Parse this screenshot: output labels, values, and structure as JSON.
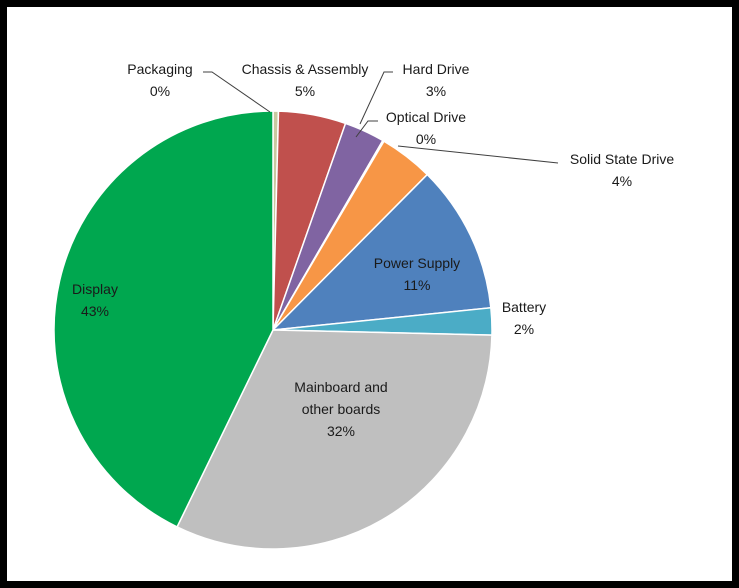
{
  "chart_data": {
    "type": "pie",
    "title": "",
    "start_angle_deg": 0,
    "direction": "clockwise",
    "slices": [
      {
        "name": "Packaging",
        "value": 0.4,
        "label": "0%",
        "color": "#c9c9a0",
        "label_pos": "outside",
        "label_anchor": "Packaging"
      },
      {
        "name": "Chassis & Assembly",
        "value": 5,
        "label": "5%",
        "color": "#c0504d",
        "label_pos": "outside"
      },
      {
        "name": "Hard Drive",
        "value": 3,
        "label": "3%",
        "color": "#8064a2",
        "label_pos": "outside"
      },
      {
        "name": "Optical Drive",
        "value": 0.1,
        "label": "0%",
        "color": "#4bacc6",
        "label_pos": "outside"
      },
      {
        "name": "Solid State Drive",
        "value": 4,
        "label": "4%",
        "color": "#f79646",
        "label_pos": "outside"
      },
      {
        "name": "Power Supply",
        "value": 11,
        "label": "11%",
        "color": "#4f81bd",
        "label_pos": "inside"
      },
      {
        "name": "Battery",
        "value": 2,
        "label": "2%",
        "color": "#4bacc6",
        "label_pos": "outside"
      },
      {
        "name": "Mainboard and other boards",
        "value": 32,
        "label": "32%",
        "color": "#bfbfbf",
        "label_pos": "inside",
        "name_lines": [
          "Mainboard and",
          "other boards"
        ]
      },
      {
        "name": "Display",
        "value": 43,
        "label": "43%",
        "color": "#00a74f",
        "label_pos": "inside"
      }
    ]
  }
}
